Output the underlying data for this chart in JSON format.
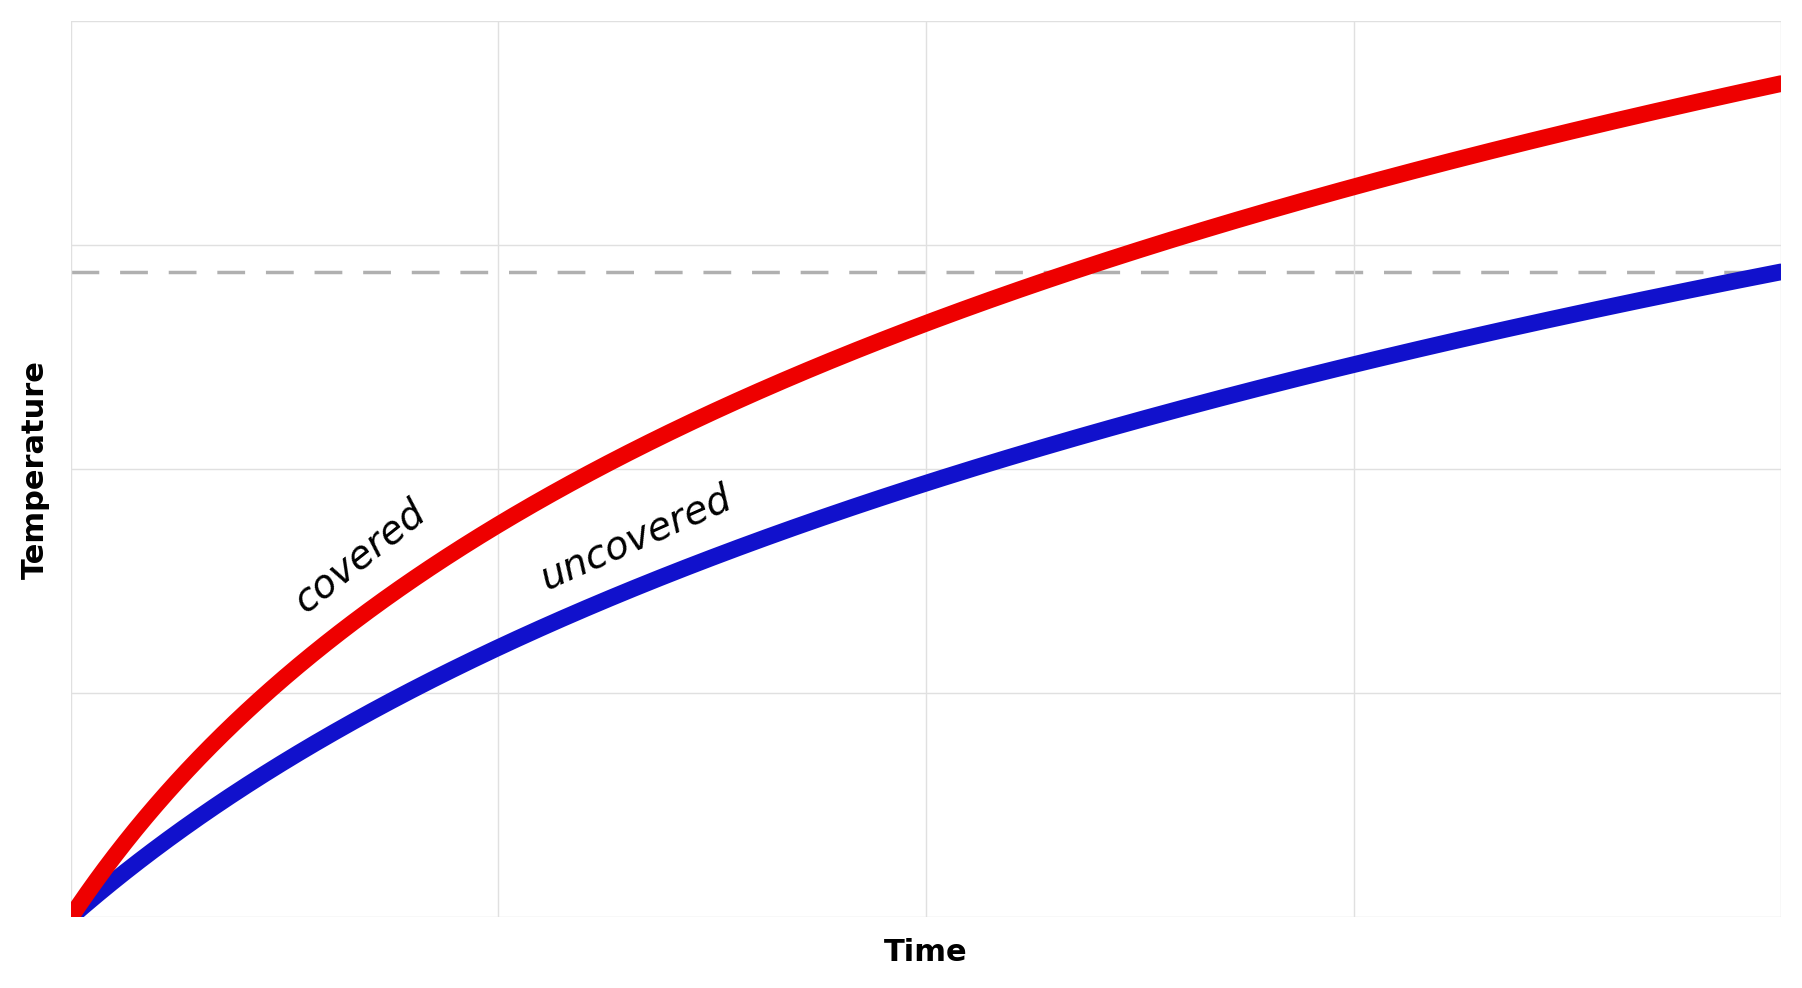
{
  "title": "",
  "xlabel": "Time",
  "ylabel": "Temperature",
  "xlabel_fontsize": 22,
  "ylabel_fontsize": 22,
  "xlabel_fontweight": "bold",
  "ylabel_fontweight": "bold",
  "background_color": "#ffffff",
  "grid_color": "#e0e0e0",
  "grid_linewidth": 1.0,
  "dashed_line_color": "#b0b0b0",
  "dashed_line_y": 0.72,
  "covered_color": "#ee0000",
  "uncovered_color": "#1111cc",
  "line_width": 12,
  "covered_label": "covered",
  "uncovered_label": "uncovered",
  "label_fontsize": 28
}
